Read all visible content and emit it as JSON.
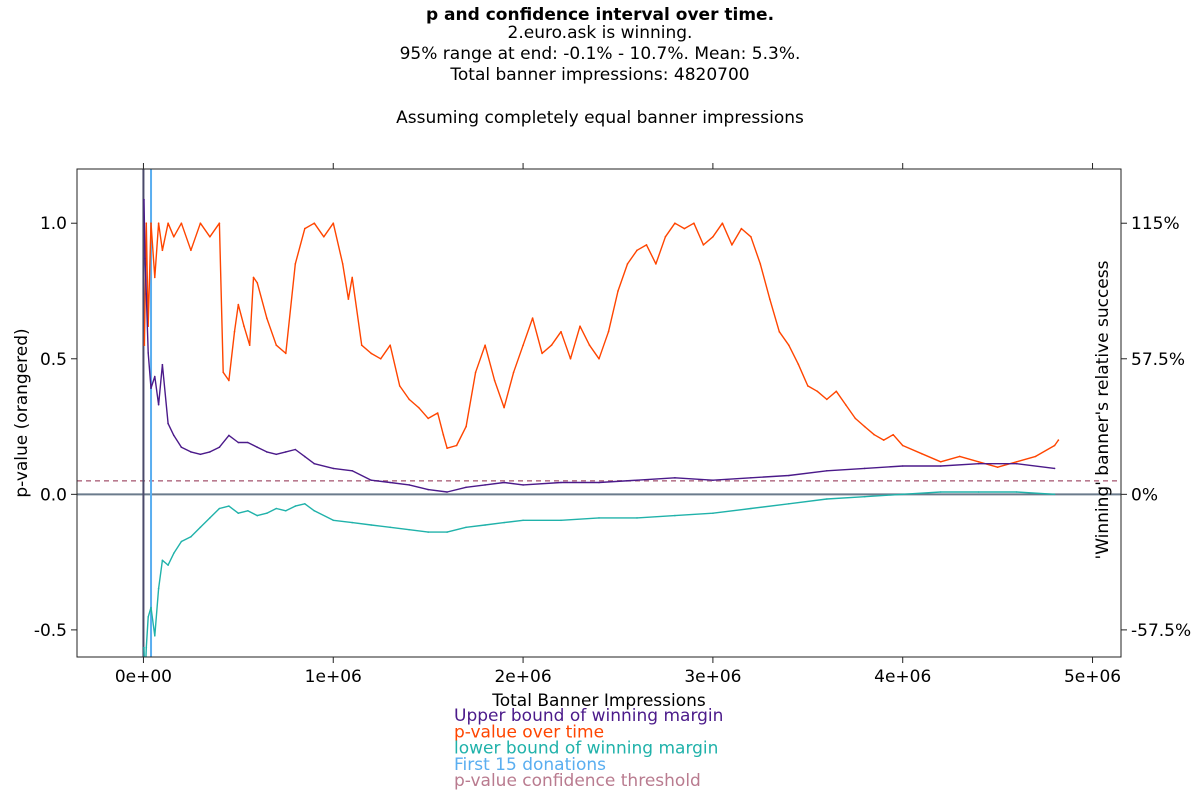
{
  "chart_data": {
    "type": "line",
    "title": "p and confidence interval over time.",
    "subtitle_lines": [
      "2.euro.ask is winning.",
      "95% range at end: -0.1% - 10.7%. Mean: 5.3%.",
      "Total banner impressions: 4820700",
      "",
      "Assuming completely equal banner impressions"
    ],
    "xlabel": "Total Banner Impressions",
    "ylabel_left": "p-value (orangered)",
    "ylabel_right": "'Winning' banner's relative success",
    "xlim": [
      -350000,
      5150000
    ],
    "ylim_left": [
      -0.6,
      1.2
    ],
    "ylim_right": [
      -69,
      138
    ],
    "x_ticks": [
      {
        "value": 0,
        "label": "0e+00"
      },
      {
        "value": 1000000,
        "label": "1e+06"
      },
      {
        "value": 2000000,
        "label": "2e+06"
      },
      {
        "value": 3000000,
        "label": "3e+06"
      },
      {
        "value": 4000000,
        "label": "4e+06"
      },
      {
        "value": 5000000,
        "label": "5e+06"
      }
    ],
    "y_ticks_left": [
      {
        "value": 1.0,
        "label": "1.0"
      },
      {
        "value": 0.5,
        "label": "0.5"
      },
      {
        "value": 0.0,
        "label": "0.0"
      },
      {
        "value": -0.5,
        "label": "-0.5"
      }
    ],
    "y_ticks_right": [
      {
        "value": 115,
        "label": "115%"
      },
      {
        "value": 57.5,
        "label": "57.5%"
      },
      {
        "value": 0,
        "label": "0%"
      },
      {
        "value": -57.5,
        "label": "-57.5%"
      }
    ],
    "threshold": 0.05,
    "first_donations_x": 40000,
    "colors": {
      "upper": "#4b1a8a",
      "pvalue": "#ff4500",
      "lower": "#20b2aa",
      "donations": "#5aaef0",
      "threshold": "#b97b8f",
      "zero_line": "#6b7b8c",
      "start_line": "#4a4a6a"
    },
    "series": [
      {
        "name": "p-value over time",
        "key": "pvalue",
        "x": [
          5000,
          15000,
          25000,
          40000,
          60000,
          80000,
          100000,
          130000,
          160000,
          200000,
          250000,
          300000,
          350000,
          400000,
          420000,
          450000,
          480000,
          500000,
          530000,
          560000,
          580000,
          600000,
          650000,
          700000,
          750000,
          800000,
          850000,
          900000,
          950000,
          1000000,
          1050000,
          1080000,
          1100000,
          1150000,
          1200000,
          1250000,
          1300000,
          1350000,
          1400000,
          1450000,
          1500000,
          1550000,
          1580000,
          1600000,
          1650000,
          1700000,
          1750000,
          1800000,
          1850000,
          1900000,
          1950000,
          2000000,
          2050000,
          2100000,
          2150000,
          2200000,
          2250000,
          2300000,
          2350000,
          2400000,
          2450000,
          2500000,
          2550000,
          2600000,
          2650000,
          2700000,
          2750000,
          2800000,
          2850000,
          2900000,
          2950000,
          3000000,
          3050000,
          3100000,
          3150000,
          3200000,
          3250000,
          3300000,
          3350000,
          3400000,
          3450000,
          3500000,
          3550000,
          3600000,
          3650000,
          3700000,
          3750000,
          3800000,
          3850000,
          3900000,
          3950000,
          4000000,
          4100000,
          4200000,
          4300000,
          4400000,
          4500000,
          4600000,
          4700000,
          4800000,
          4820000
        ],
        "values": [
          0.55,
          1.0,
          0.62,
          1.0,
          0.8,
          1.0,
          0.9,
          1.0,
          0.95,
          1.0,
          0.9,
          1.0,
          0.95,
          1.0,
          0.45,
          0.42,
          0.6,
          0.7,
          0.62,
          0.55,
          0.8,
          0.78,
          0.65,
          0.55,
          0.52,
          0.85,
          0.98,
          1.0,
          0.95,
          1.0,
          0.85,
          0.72,
          0.8,
          0.55,
          0.52,
          0.5,
          0.55,
          0.4,
          0.35,
          0.32,
          0.28,
          0.3,
          0.22,
          0.17,
          0.18,
          0.25,
          0.45,
          0.55,
          0.42,
          0.32,
          0.45,
          0.55,
          0.65,
          0.52,
          0.55,
          0.6,
          0.5,
          0.62,
          0.55,
          0.5,
          0.6,
          0.75,
          0.85,
          0.9,
          0.92,
          0.85,
          0.95,
          1.0,
          0.98,
          1.0,
          0.92,
          0.95,
          1.0,
          0.92,
          0.98,
          0.95,
          0.85,
          0.72,
          0.6,
          0.55,
          0.48,
          0.4,
          0.38,
          0.35,
          0.38,
          0.33,
          0.28,
          0.25,
          0.22,
          0.2,
          0.22,
          0.18,
          0.15,
          0.12,
          0.14,
          0.12,
          0.1,
          0.12,
          0.14,
          0.18,
          0.2
        ]
      },
      {
        "name": "Upper bound of winning margin",
        "key": "upper",
        "x": [
          3000,
          8000,
          15000,
          25000,
          40000,
          60000,
          80000,
          100000,
          130000,
          160000,
          200000,
          250000,
          300000,
          350000,
          400000,
          450000,
          500000,
          550000,
          600000,
          650000,
          700000,
          750000,
          800000,
          850000,
          900000,
          1000000,
          1100000,
          1200000,
          1300000,
          1400000,
          1500000,
          1600000,
          1700000,
          1800000,
          1900000,
          2000000,
          2200000,
          2400000,
          2600000,
          2800000,
          3000000,
          3200000,
          3400000,
          3600000,
          3800000,
          4000000,
          4200000,
          4400000,
          4600000,
          4800000
        ],
        "values": [
          125,
          100,
          85,
          60,
          45,
          50,
          38,
          55,
          30,
          25,
          20,
          18,
          17,
          18,
          20,
          25,
          22,
          22,
          20,
          18,
          17,
          18,
          19,
          16,
          13,
          11,
          10,
          6,
          5,
          4,
          2,
          1,
          3,
          4,
          5,
          4,
          5,
          5,
          6,
          7,
          6,
          7,
          8,
          10,
          11,
          12,
          12,
          13,
          13,
          11
        ]
      },
      {
        "name": "lower bound of winning margin",
        "key": "lower",
        "x": [
          3000,
          8000,
          15000,
          25000,
          40000,
          60000,
          80000,
          100000,
          130000,
          160000,
          200000,
          250000,
          300000,
          350000,
          400000,
          450000,
          500000,
          550000,
          600000,
          650000,
          700000,
          750000,
          800000,
          850000,
          900000,
          1000000,
          1100000,
          1200000,
          1300000,
          1400000,
          1500000,
          1600000,
          1700000,
          1800000,
          1900000,
          2000000,
          2200000,
          2400000,
          2600000,
          2800000,
          3000000,
          3200000,
          3400000,
          3600000,
          3800000,
          4000000,
          4200000,
          4400000,
          4600000,
          4800000
        ],
        "values": [
          -65,
          -80,
          -65,
          -52,
          -48,
          -60,
          -40,
          -28,
          -30,
          -25,
          -20,
          -18,
          -14,
          -10,
          -6,
          -5,
          -8,
          -7,
          -9,
          -8,
          -6,
          -7,
          -5,
          -4,
          -7,
          -11,
          -12,
          -13,
          -14,
          -15,
          -16,
          -16,
          -14,
          -13,
          -12,
          -11,
          -11,
          -10,
          -10,
          -9,
          -8,
          -6,
          -4,
          -2,
          -1,
          0,
          1,
          1,
          1,
          0
        ]
      }
    ],
    "legend": [
      {
        "label": "Upper bound of winning margin",
        "key": "upper"
      },
      {
        "label": "p-value over time",
        "key": "pvalue"
      },
      {
        "label": "lower bound of winning margin",
        "key": "lower"
      },
      {
        "label": "First 15 donations",
        "key": "donations"
      },
      {
        "label": "p-value confidence threshold",
        "key": "threshold"
      }
    ],
    "legend_placement": "bottom-center",
    "grid": false
  }
}
